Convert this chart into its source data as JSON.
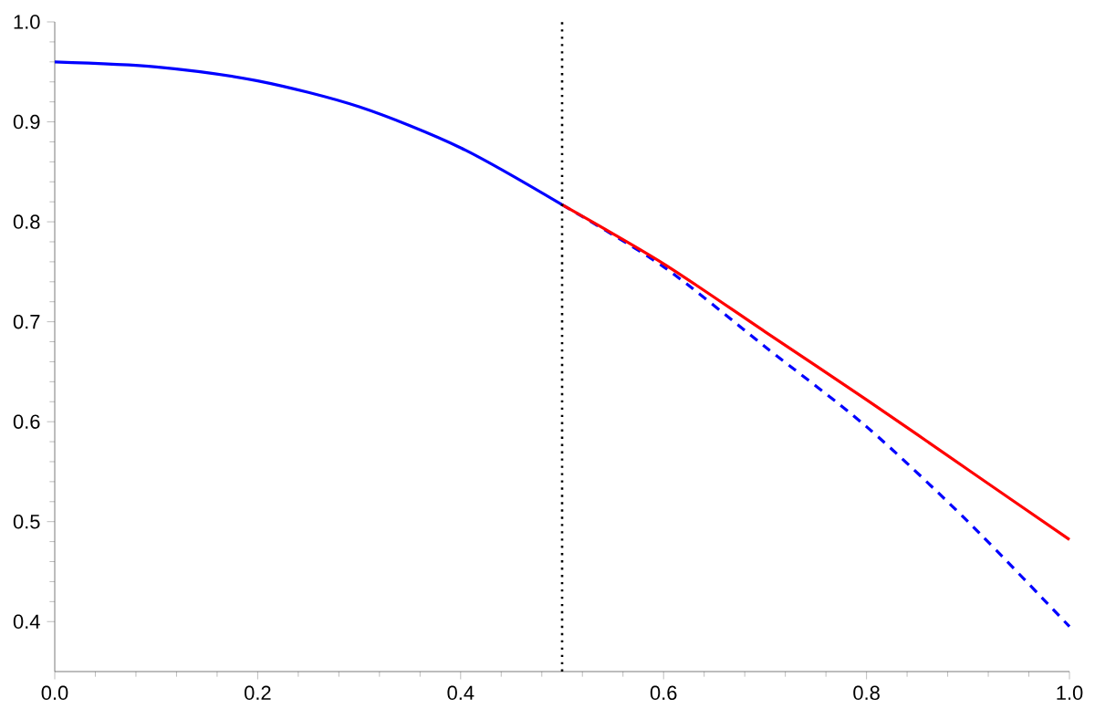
{
  "chart_data": {
    "type": "line",
    "xlim": [
      0,
      1.0
    ],
    "ylim": [
      0.35,
      1.0
    ],
    "xticks": [
      {
        "value": 0,
        "label": "0.0"
      },
      0.2,
      0.4,
      0.6,
      0.8,
      {
        "value": 1,
        "label": "1.0"
      }
    ],
    "yticks": [
      0.4,
      0.5,
      0.6,
      0.7,
      0.8,
      0.9,
      {
        "value": 1,
        "label": "1.0"
      }
    ],
    "grid": false,
    "marker": "none",
    "series": [
      {
        "color": "#0000ff",
        "line_style": "solid",
        "x": [
          0,
          0.1,
          0.2,
          0.3,
          0.4,
          0.5
        ],
        "values": [
          0.96,
          0.955,
          0.941,
          0.915,
          0.874,
          0.817
        ]
      },
      {
        "color": "#0000ff",
        "line_style": "dashed",
        "x": [
          0.5,
          0.6,
          0.7,
          0.8,
          0.9,
          1.0
        ],
        "values": [
          0.817,
          0.755,
          0.675,
          0.595,
          0.5,
          0.395
        ]
      },
      {
        "color": "#ff0000",
        "line_style": "solid",
        "x": [
          0.5,
          0.6,
          0.7,
          0.8,
          0.9,
          1.0
        ],
        "values": [
          0.817,
          0.758,
          0.69,
          0.622,
          0.552,
          0.482
        ]
      }
    ],
    "ref_lines": [
      {
        "axis": "x",
        "value": 0.5,
        "color": "#000000",
        "line_style": "dotted"
      }
    ]
  }
}
